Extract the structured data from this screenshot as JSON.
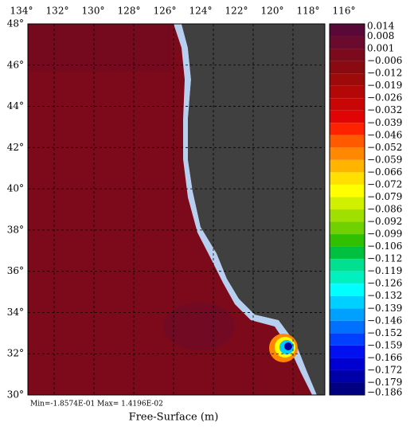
{
  "map": {
    "top_axis_labels": [
      "134°",
      "132°",
      "130°",
      "128°",
      "126°",
      "124°",
      "122°",
      "120°",
      "118°",
      "116°"
    ],
    "left_axis_labels": [
      "48°",
      "46°",
      "44°",
      "42°",
      "40°",
      "38°",
      "36°",
      "34°",
      "32°",
      "30°"
    ],
    "colorbar": {
      "labels": [
        "0.014",
        "0.008",
        "0.001",
        "−0.006",
        "−0.012",
        "−0.019",
        "−0.026",
        "−0.032",
        "−0.039",
        "−0.046",
        "−0.052",
        "−0.059",
        "−0.066",
        "−0.072",
        "−0.079",
        "−0.086",
        "−0.092",
        "−0.099",
        "−0.106",
        "−0.112",
        "−0.119",
        "−0.126",
        "−0.132",
        "−0.139",
        "−0.146",
        "−0.152",
        "−0.159",
        "−0.166",
        "−0.172",
        "−0.179",
        "−0.186"
      ],
      "colors": [
        "#5a0838",
        "#6a0a2c",
        "#7a0a1c",
        "#8a0a12",
        "#9c0a0a",
        "#b20808",
        "#c80606",
        "#e00404",
        "#ff2200",
        "#ff5a00",
        "#ff8800",
        "#ffb400",
        "#ffe000",
        "#ffff00",
        "#d0f000",
        "#a0e000",
        "#70d000",
        "#30c000",
        "#00c040",
        "#00e090",
        "#00f0c0",
        "#00ffff",
        "#00d0ff",
        "#00a0ff",
        "#0070ff",
        "#0040ff",
        "#0010f0",
        "#0000d0",
        "#0000a8",
        "#000080"
      ]
    },
    "stats": "Min=-1.8574E-01  Max= 1.4196E-02",
    "title": "Free-Surface (m)"
  }
}
